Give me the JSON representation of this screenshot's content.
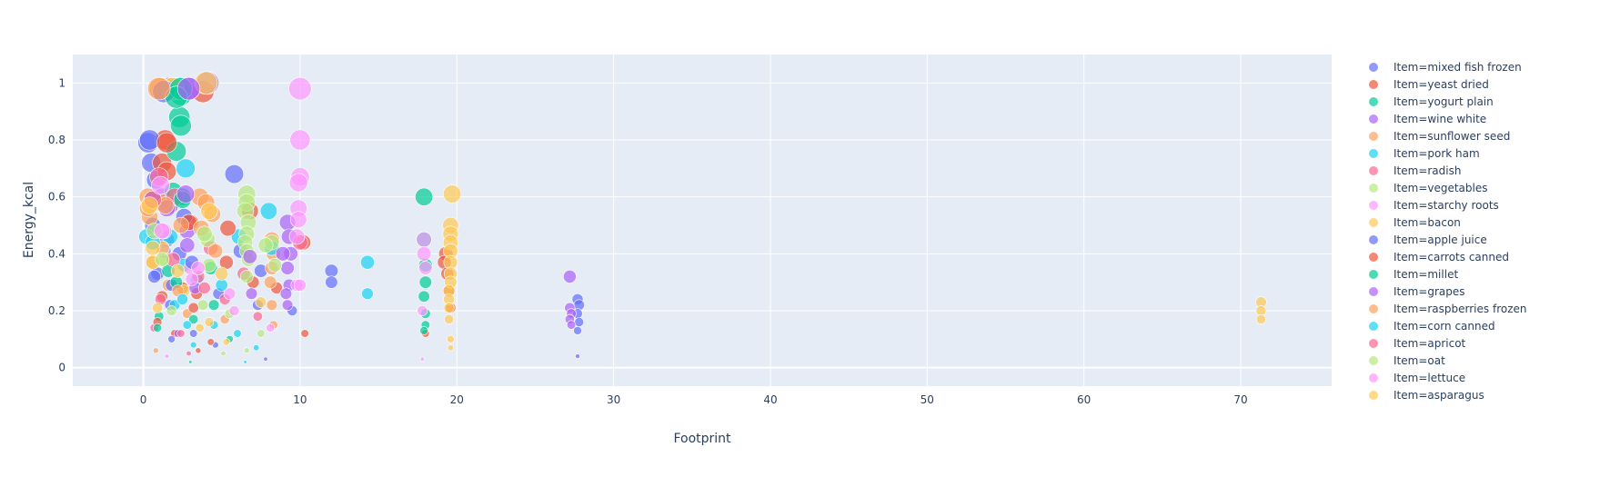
{
  "chart_data": {
    "type": "scatter",
    "title": "",
    "xlabel": "Footprint",
    "ylabel": "Energy_kcal",
    "xlim": [
      -4.5,
      75.8
    ],
    "ylim": [
      -0.065,
      1.1
    ],
    "xticks": [
      0,
      10,
      20,
      30,
      40,
      50,
      60,
      70
    ],
    "yticks": [
      0,
      0.2,
      0.4,
      0.6,
      0.8,
      1
    ],
    "ytick_labels": [
      "0",
      "0.2",
      "0.4",
      "0.6",
      "0.8",
      "1"
    ],
    "grid": true,
    "legend_position": "right",
    "marker_size_encodes": "Energy_kcal",
    "series": [
      {
        "name": "Item=mixed fish frozen",
        "color": "#636efa",
        "points": [
          [
            0.3,
            0.79
          ],
          [
            0.5,
            0.72
          ],
          [
            0.8,
            0.66
          ],
          [
            1.2,
            0.6
          ],
          [
            0.6,
            0.5
          ],
          [
            1.5,
            0.45
          ],
          [
            2.3,
            0.4
          ],
          [
            0.9,
            0.33
          ],
          [
            5.8,
            0.68
          ],
          [
            6.2,
            0.41
          ],
          [
            7.5,
            0.34
          ],
          [
            9.5,
            0.2
          ],
          [
            12,
            0.34
          ],
          [
            12,
            0.3
          ],
          [
            27.7,
            0.24
          ],
          [
            27.8,
            0.22
          ],
          [
            27.7,
            0.19
          ],
          [
            27.8,
            0.16
          ],
          [
            27.7,
            0.13
          ],
          [
            27.7,
            0.04
          ],
          [
            1.7,
            0.22
          ],
          [
            3.2,
            0.12
          ],
          [
            4.8,
            0.26
          ],
          [
            7.8,
            0.03
          ]
        ]
      },
      {
        "name": "Item=yeast dried",
        "color": "#EF553B",
        "points": [
          [
            1.4,
            0.8
          ],
          [
            1.6,
            0.98
          ],
          [
            3.8,
            0.97
          ],
          [
            1.2,
            0.72
          ],
          [
            1.5,
            0.69
          ],
          [
            3,
            0.51
          ],
          [
            2.5,
            0.28
          ],
          [
            5.3,
            0.37
          ],
          [
            7,
            0.3
          ],
          [
            8.5,
            0.28
          ],
          [
            10.2,
            0.44
          ],
          [
            10.3,
            0.12
          ],
          [
            19.3,
            0.4
          ],
          [
            19.2,
            0.37
          ],
          [
            19.4,
            0.33
          ],
          [
            19.5,
            0.27
          ],
          [
            19.6,
            0.21
          ],
          [
            18,
            0.12
          ],
          [
            2,
            0.12
          ],
          [
            3.5,
            0.06
          ],
          [
            6.8,
            0.55
          ]
        ]
      },
      {
        "name": "Item=yogurt plain",
        "color": "#00cc96",
        "points": [
          [
            2.2,
            0.98
          ],
          [
            2.4,
            0.96
          ],
          [
            2.3,
            0.88
          ],
          [
            2.4,
            0.85
          ],
          [
            2.1,
            0.76
          ],
          [
            1.9,
            0.62
          ],
          [
            2.5,
            0.6
          ],
          [
            17.9,
            0.6
          ],
          [
            17.9,
            0.45
          ],
          [
            18,
            0.36
          ],
          [
            18,
            0.3
          ],
          [
            17.9,
            0.25
          ],
          [
            18,
            0.19
          ],
          [
            18,
            0.15
          ],
          [
            17.9,
            0.13
          ],
          [
            4.3,
            0.35
          ],
          [
            1,
            0.18
          ],
          [
            3,
            0.02
          ],
          [
            5.5,
            0.1
          ]
        ]
      },
      {
        "name": "Item=wine white",
        "color": "#ab63fa",
        "points": [
          [
            2.9,
            0.98
          ],
          [
            4.1,
            1.0
          ],
          [
            1.7,
            0.57
          ],
          [
            2.8,
            0.48
          ],
          [
            9.2,
            0.51
          ],
          [
            9.3,
            0.46
          ],
          [
            9.4,
            0.4
          ],
          [
            9.2,
            0.35
          ],
          [
            9.3,
            0.29
          ],
          [
            9.1,
            0.26
          ],
          [
            9.2,
            0.22
          ],
          [
            27.2,
            0.32
          ],
          [
            27.2,
            0.21
          ],
          [
            27.3,
            0.19
          ],
          [
            27.2,
            0.17
          ],
          [
            27.3,
            0.15
          ],
          [
            1.3,
            0.41
          ],
          [
            6.9,
            0.26
          ]
        ]
      },
      {
        "name": "Item=sunflower seed",
        "color": "#FFA15A",
        "points": [
          [
            1.1,
            0.98
          ],
          [
            0.3,
            0.6
          ],
          [
            0.4,
            0.53
          ],
          [
            0.6,
            0.37
          ],
          [
            1.2,
            0.58
          ],
          [
            3.6,
            0.6
          ],
          [
            4,
            0.58
          ],
          [
            4.4,
            0.54
          ],
          [
            8.2,
            0.45
          ],
          [
            8.3,
            0.4
          ],
          [
            8.2,
            0.35
          ],
          [
            8.1,
            0.3
          ],
          [
            8.2,
            0.22
          ],
          [
            8.3,
            0.15
          ],
          [
            1.6,
            0.29
          ],
          [
            2.8,
            0.19
          ],
          [
            5.2,
            0.17
          ]
        ]
      },
      {
        "name": "Item=pork ham",
        "color": "#19d3f3",
        "points": [
          [
            2.7,
            0.7
          ],
          [
            1.7,
            0.46
          ],
          [
            2.6,
            0.36
          ],
          [
            3.4,
            0.31
          ],
          [
            5,
            0.29
          ],
          [
            6.1,
            0.46
          ],
          [
            8,
            0.55
          ],
          [
            8.2,
            0.42
          ],
          [
            14.3,
            0.37
          ],
          [
            14.3,
            0.26
          ],
          [
            2,
            0.22
          ],
          [
            4.5,
            0.15
          ],
          [
            6,
            0.12
          ],
          [
            7.2,
            0.07
          ]
        ]
      },
      {
        "name": "Item=radish",
        "color": "#FF6692",
        "points": [
          [
            1,
            0.67
          ],
          [
            2,
            0.6
          ],
          [
            4.3,
            0.42
          ],
          [
            10,
            0.44
          ],
          [
            3.5,
            0.32
          ],
          [
            5.2,
            0.24
          ],
          [
            7.3,
            0.18
          ],
          [
            0.7,
            0.14
          ],
          [
            2.9,
            0.05
          ]
        ]
      },
      {
        "name": "Item=vegetables",
        "color": "#B6E880",
        "points": [
          [
            6.6,
            0.61
          ],
          [
            6.6,
            0.58
          ],
          [
            6.5,
            0.55
          ],
          [
            6.7,
            0.51
          ],
          [
            6.6,
            0.47
          ],
          [
            6.5,
            0.44
          ],
          [
            6.6,
            0.41
          ],
          [
            6.7,
            0.38
          ],
          [
            8.2,
            0.44
          ],
          [
            8.4,
            0.36
          ],
          [
            4.1,
            0.45
          ],
          [
            1.4,
            0.38
          ],
          [
            3.8,
            0.22
          ],
          [
            5.5,
            0.19
          ],
          [
            7.5,
            0.12
          ],
          [
            6.6,
            0.06
          ]
        ]
      },
      {
        "name": "Item=starchy roots",
        "color": "#FF97FF",
        "points": [
          [
            10,
            0.98
          ],
          [
            10,
            0.8
          ],
          [
            10,
            0.67
          ],
          [
            9.9,
            0.65
          ],
          [
            9.9,
            0.56
          ],
          [
            9.9,
            0.52
          ],
          [
            9.8,
            0.46
          ],
          [
            17.9,
            0.45
          ],
          [
            17.9,
            0.4
          ],
          [
            18,
            0.35
          ],
          [
            17.8,
            0.2
          ],
          [
            17.8,
            0.03
          ],
          [
            9.8,
            0.29
          ],
          [
            1.3,
            0.48
          ],
          [
            3,
            0.35
          ],
          [
            5.8,
            0.2
          ]
        ]
      },
      {
        "name": "Item=bacon",
        "color": "#FECB52",
        "points": [
          [
            1.9,
            0.98
          ],
          [
            4,
            1.0
          ],
          [
            1.2,
            0.42
          ],
          [
            0.6,
            0.37
          ],
          [
            19.7,
            0.61
          ],
          [
            19.6,
            0.5
          ],
          [
            19.6,
            0.47
          ],
          [
            19.6,
            0.44
          ],
          [
            19.6,
            0.41
          ],
          [
            19.6,
            0.37
          ],
          [
            19.6,
            0.33
          ],
          [
            19.6,
            0.3
          ],
          [
            19.5,
            0.27
          ],
          [
            19.5,
            0.24
          ],
          [
            19.5,
            0.21
          ],
          [
            19.5,
            0.17
          ],
          [
            19.6,
            0.1
          ],
          [
            19.6,
            0.07
          ],
          [
            71.3,
            0.23
          ],
          [
            71.3,
            0.2
          ],
          [
            71.3,
            0.17
          ],
          [
            5,
            0.33
          ],
          [
            2.6,
            0.27
          ],
          [
            4.2,
            0.16
          ]
        ]
      },
      {
        "name": "Item=apple juice",
        "color": "#636efa",
        "points": [
          [
            0.4,
            0.8
          ],
          [
            1.3,
            0.97
          ],
          [
            0.6,
            0.59
          ],
          [
            2.6,
            0.53
          ],
          [
            0.7,
            0.32
          ],
          [
            1.8,
            0.29
          ],
          [
            3.1,
            0.37
          ],
          [
            7.3,
            0.22
          ],
          [
            4.6,
            0.08
          ],
          [
            1.8,
            0.1
          ]
        ]
      },
      {
        "name": "Item=carrots canned",
        "color": "#EF553B",
        "points": [
          [
            1.5,
            0.79
          ],
          [
            2.9,
            0.51
          ],
          [
            3.4,
            0.26
          ],
          [
            3.2,
            0.21
          ],
          [
            5.4,
            0.49
          ],
          [
            1.2,
            0.25
          ],
          [
            0.9,
            0.16
          ],
          [
            4.3,
            0.09
          ]
        ]
      },
      {
        "name": "Item=millet",
        "color": "#00cc96",
        "points": [
          [
            2.4,
            0.98
          ],
          [
            2.1,
            0.95
          ],
          [
            2.5,
            0.59
          ],
          [
            1.6,
            0.34
          ],
          [
            0.9,
            0.14
          ],
          [
            2.1,
            0.3
          ],
          [
            3.2,
            0.17
          ],
          [
            4.5,
            0.22
          ]
        ]
      },
      {
        "name": "Item=grapes",
        "color": "#ab63fa",
        "points": [
          [
            2.9,
            0.98
          ],
          [
            2.7,
            0.61
          ],
          [
            2.8,
            0.43
          ],
          [
            1.5,
            0.56
          ],
          [
            3.3,
            0.28
          ],
          [
            6.8,
            0.39
          ],
          [
            8.9,
            0.4
          ],
          [
            2.2,
            0.12
          ]
        ]
      },
      {
        "name": "Item=raspberries frozen",
        "color": "#FFA15A",
        "points": [
          [
            1.0,
            0.98
          ],
          [
            0.3,
            0.56
          ],
          [
            1.4,
            0.57
          ],
          [
            2.4,
            0.5
          ],
          [
            3.7,
            0.49
          ],
          [
            2.2,
            0.27
          ],
          [
            4.6,
            0.41
          ],
          [
            0.8,
            0.06
          ]
        ]
      },
      {
        "name": "Item=corn canned",
        "color": "#19d3f3",
        "points": [
          [
            0.2,
            0.46
          ],
          [
            0.6,
            0.44
          ],
          [
            2.5,
            0.24
          ],
          [
            2.8,
            0.15
          ],
          [
            3.2,
            0.08
          ],
          [
            6.5,
            0.02
          ]
        ]
      },
      {
        "name": "Item=apricot",
        "color": "#FF6692",
        "points": [
          [
            0.6,
            0.59
          ],
          [
            1.9,
            0.38
          ],
          [
            3.9,
            0.28
          ],
          [
            6.4,
            0.33
          ],
          [
            1.1,
            0.24
          ],
          [
            2.4,
            0.12
          ]
        ]
      },
      {
        "name": "Item=oat",
        "color": "#B6E880",
        "points": [
          [
            0.7,
            0.48
          ],
          [
            1.2,
            0.38
          ],
          [
            3.9,
            0.47
          ],
          [
            4.2,
            0.36
          ],
          [
            7.8,
            0.43
          ],
          [
            6.6,
            0.32
          ],
          [
            1.8,
            0.2
          ],
          [
            5.1,
            0.05
          ]
        ]
      },
      {
        "name": "Item=lettuce",
        "color": "#FF97FF",
        "points": [
          [
            1.1,
            0.64
          ],
          [
            1.2,
            0.48
          ],
          [
            3.5,
            0.35
          ],
          [
            3.1,
            0.31
          ],
          [
            10,
            0.29
          ],
          [
            5.5,
            0.26
          ],
          [
            1.5,
            0.04
          ],
          [
            8.1,
            0.14
          ]
        ]
      },
      {
        "name": "Item=asparagus",
        "color": "#FECB52",
        "points": [
          [
            0.4,
            0.57
          ],
          [
            0.6,
            0.42
          ],
          [
            4.2,
            0.55
          ],
          [
            2.2,
            0.34
          ],
          [
            7.5,
            0.23
          ],
          [
            0.9,
            0.21
          ],
          [
            3.6,
            0.14
          ],
          [
            5.3,
            0.09
          ]
        ]
      }
    ]
  }
}
